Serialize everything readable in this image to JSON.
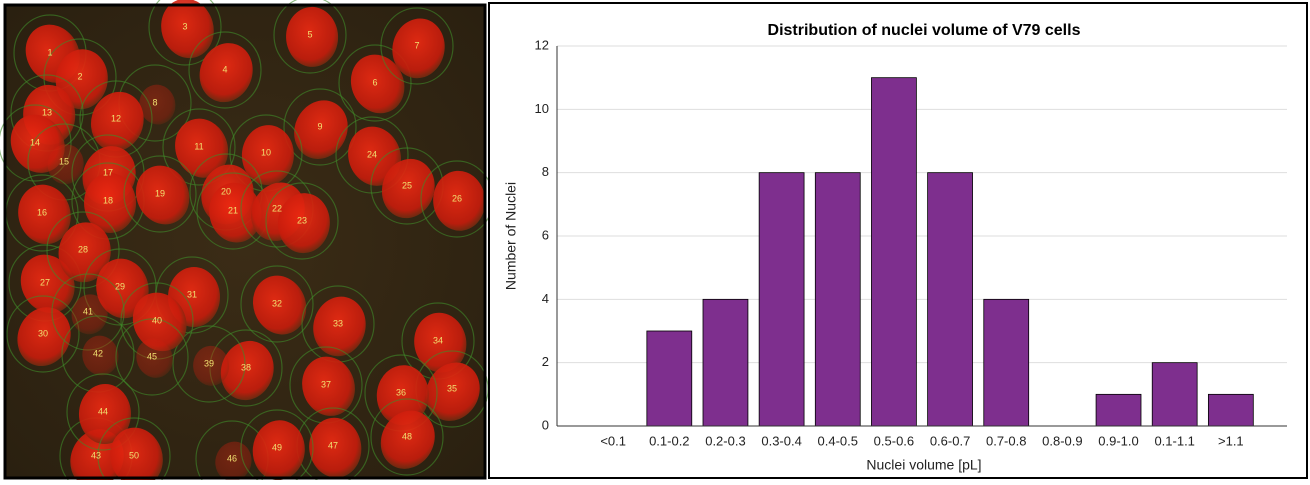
{
  "image": {
    "labels": [
      "1",
      "2",
      "3",
      "4",
      "5",
      "6",
      "7",
      "8",
      "9",
      "10",
      "11",
      "12",
      "13",
      "14",
      "15",
      "16",
      "17",
      "18",
      "19",
      "20",
      "21",
      "22",
      "23",
      "24",
      "25",
      "26",
      "27",
      "28",
      "29",
      "30",
      "31",
      "32",
      "33",
      "34",
      "35",
      "36",
      "37",
      "38",
      "39",
      "40",
      "41",
      "42",
      "43",
      "44",
      "45",
      "46",
      "47",
      "48",
      "49",
      "50"
    ]
  },
  "chart_data": {
    "type": "bar",
    "title": "Distribution of nuclei volume of V79 cells",
    "x_label": "Nuclei volume [pL]",
    "y_label": "Number of Nuclei",
    "categories": [
      "<0.1",
      "0.1-0.2",
      "0.2-0.3",
      "0.3-0.4",
      "0.4-0.5",
      "0.5-0.6",
      "0.6-0.7",
      "0.7-0.8",
      "0.8-0.9",
      "0.9-1.0",
      "0.1-1.1",
      ">1.1"
    ],
    "values": [
      0,
      3,
      4,
      8,
      8,
      11,
      8,
      4,
      0,
      1,
      2,
      1
    ],
    "color": "#7e2f8e",
    "ylim": [
      0,
      12
    ],
    "yticks": [
      0,
      2,
      4,
      6,
      8,
      10,
      12
    ],
    "grid": true
  }
}
